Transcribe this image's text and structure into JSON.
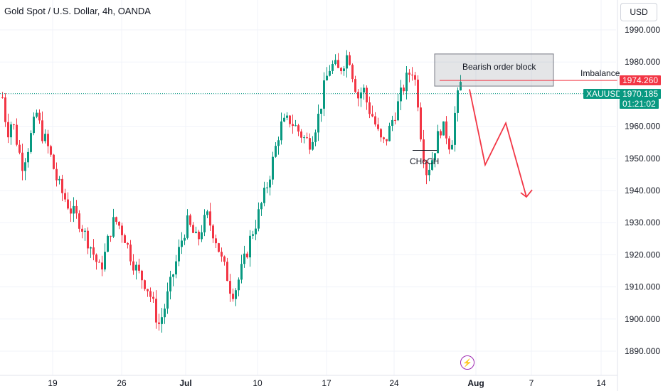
{
  "header": {
    "title": "Gold Spot / U.S. Dollar, 4h, OANDA",
    "currency": "USD"
  },
  "badges": {
    "imbalance_price": "1974.260",
    "symbol": "XAUUSD",
    "last_price": "1970.185",
    "countdown": "01:21:02"
  },
  "annotations": {
    "order_block": "Bearish order block",
    "imbalance": "Imbalance",
    "choch": "CHoCH"
  },
  "colors": {
    "up": "#089981",
    "down": "#f23645",
    "badge_red": "#f23645",
    "badge_green": "#089981",
    "dotted": "#089981",
    "arrow": "#f23645"
  },
  "icons": {
    "events": "lightning-icon"
  },
  "chart_data": {
    "type": "candlestick",
    "x_ticks": [
      "19",
      "26",
      "Jul",
      "10",
      "17",
      "24",
      "Aug",
      "7",
      "14"
    ],
    "y_ticks": [
      1990.0,
      1980.0,
      1970.0,
      1960.0,
      1950.0,
      1940.0,
      1930.0,
      1920.0,
      1910.0,
      1900.0,
      1890.0
    ],
    "y_range": [
      1885,
      1998
    ],
    "current_price": 1970.185,
    "path_closes": [
      1969,
      1958,
      1962,
      1955,
      1948,
      1952,
      1958,
      1964,
      1958,
      1955,
      1950,
      1944,
      1940,
      1937,
      1934,
      1932,
      1930,
      1926,
      1923,
      1919,
      1915,
      1920,
      1927,
      1931,
      1929,
      1926,
      1921,
      1917,
      1914,
      1912,
      1909,
      1904,
      1898,
      1902,
      1908,
      1914,
      1920,
      1926,
      1930,
      1927,
      1924,
      1929,
      1932,
      1928,
      1924,
      1918,
      1914,
      1908,
      1910,
      1915,
      1920,
      1926,
      1930,
      1935,
      1940,
      1946,
      1953,
      1960,
      1961,
      1962,
      1960,
      1958,
      1956,
      1955,
      1959,
      1964,
      1972,
      1978,
      1979,
      1977,
      1980,
      1983,
      1975,
      1969,
      1972,
      1966,
      1963,
      1958,
      1954,
      1957,
      1962,
      1966,
      1971,
      1975,
      1978,
      1972,
      1955,
      1946,
      1949,
      1955,
      1960,
      1958,
      1953,
      1966,
      1973
    ],
    "projection": [
      [
        1971.5,
        1970
      ],
      [
        1948,
        1962
      ],
      [
        1961,
        1948
      ],
      [
        1938,
        1952
      ],
      [
        1940,
        1940
      ]
    ],
    "order_block": {
      "top": 1982.5,
      "bottom": 1972.5
    },
    "imbalance_level": 1974.26,
    "choch_level": 1952.5
  }
}
